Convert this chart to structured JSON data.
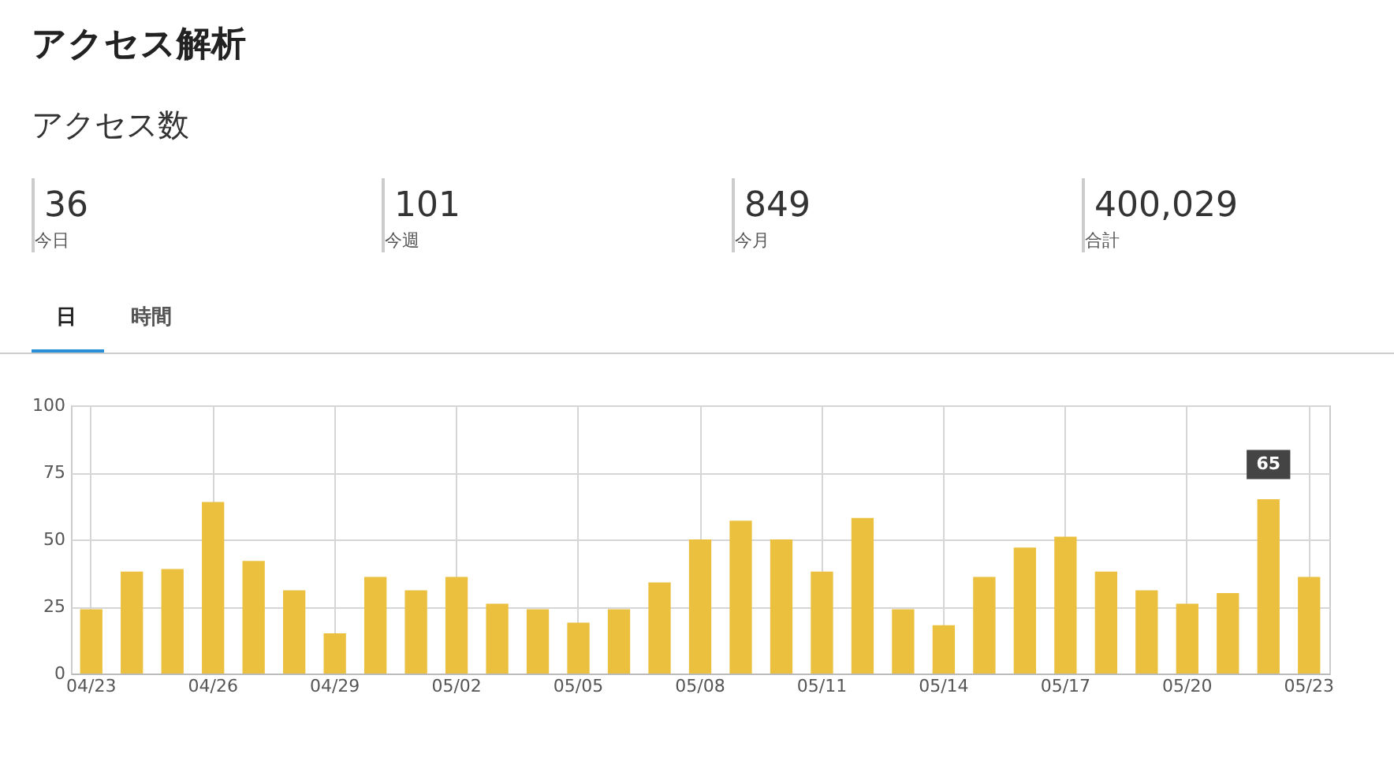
{
  "chart_data": {
    "type": "bar",
    "title": "アクセス解析",
    "subtitle": "アクセス数",
    "annotations": [
      "36",
      "今日",
      "101",
      "今週",
      "849",
      "今月",
      "400,029",
      "合計",
      "日",
      "時間"
    ],
    "categories": [
      "04/23",
      null,
      null,
      "04/26",
      null,
      null,
      "04/29",
      null,
      null,
      "05/02",
      null,
      null,
      "05/05",
      null,
      null,
      "05/08",
      null,
      null,
      "05/11",
      null,
      null,
      "05/14",
      null,
      null,
      "05/17",
      null,
      null,
      "05/20",
      null,
      null,
      "05/23"
    ],
    "values": [
      24,
      38,
      39,
      64,
      42,
      31,
      15,
      36,
      31,
      36,
      26,
      24,
      19,
      24,
      34,
      50,
      57,
      50,
      38,
      58,
      24,
      18,
      36,
      47,
      51,
      38,
      31,
      26,
      30,
      65,
      36
    ],
    "value_labels": [
      null,
      null,
      null,
      null,
      null,
      null,
      null,
      null,
      null,
      null,
      null,
      null,
      null,
      null,
      null,
      null,
      null,
      null,
      null,
      null,
      null,
      null,
      null,
      null,
      null,
      null,
      null,
      null,
      null,
      "65",
      null
    ],
    "color": "#ebc03f",
    "ylim": [
      0,
      100
    ],
    "yticks": [
      0,
      25,
      50,
      75,
      100
    ],
    "grid": true
  }
}
